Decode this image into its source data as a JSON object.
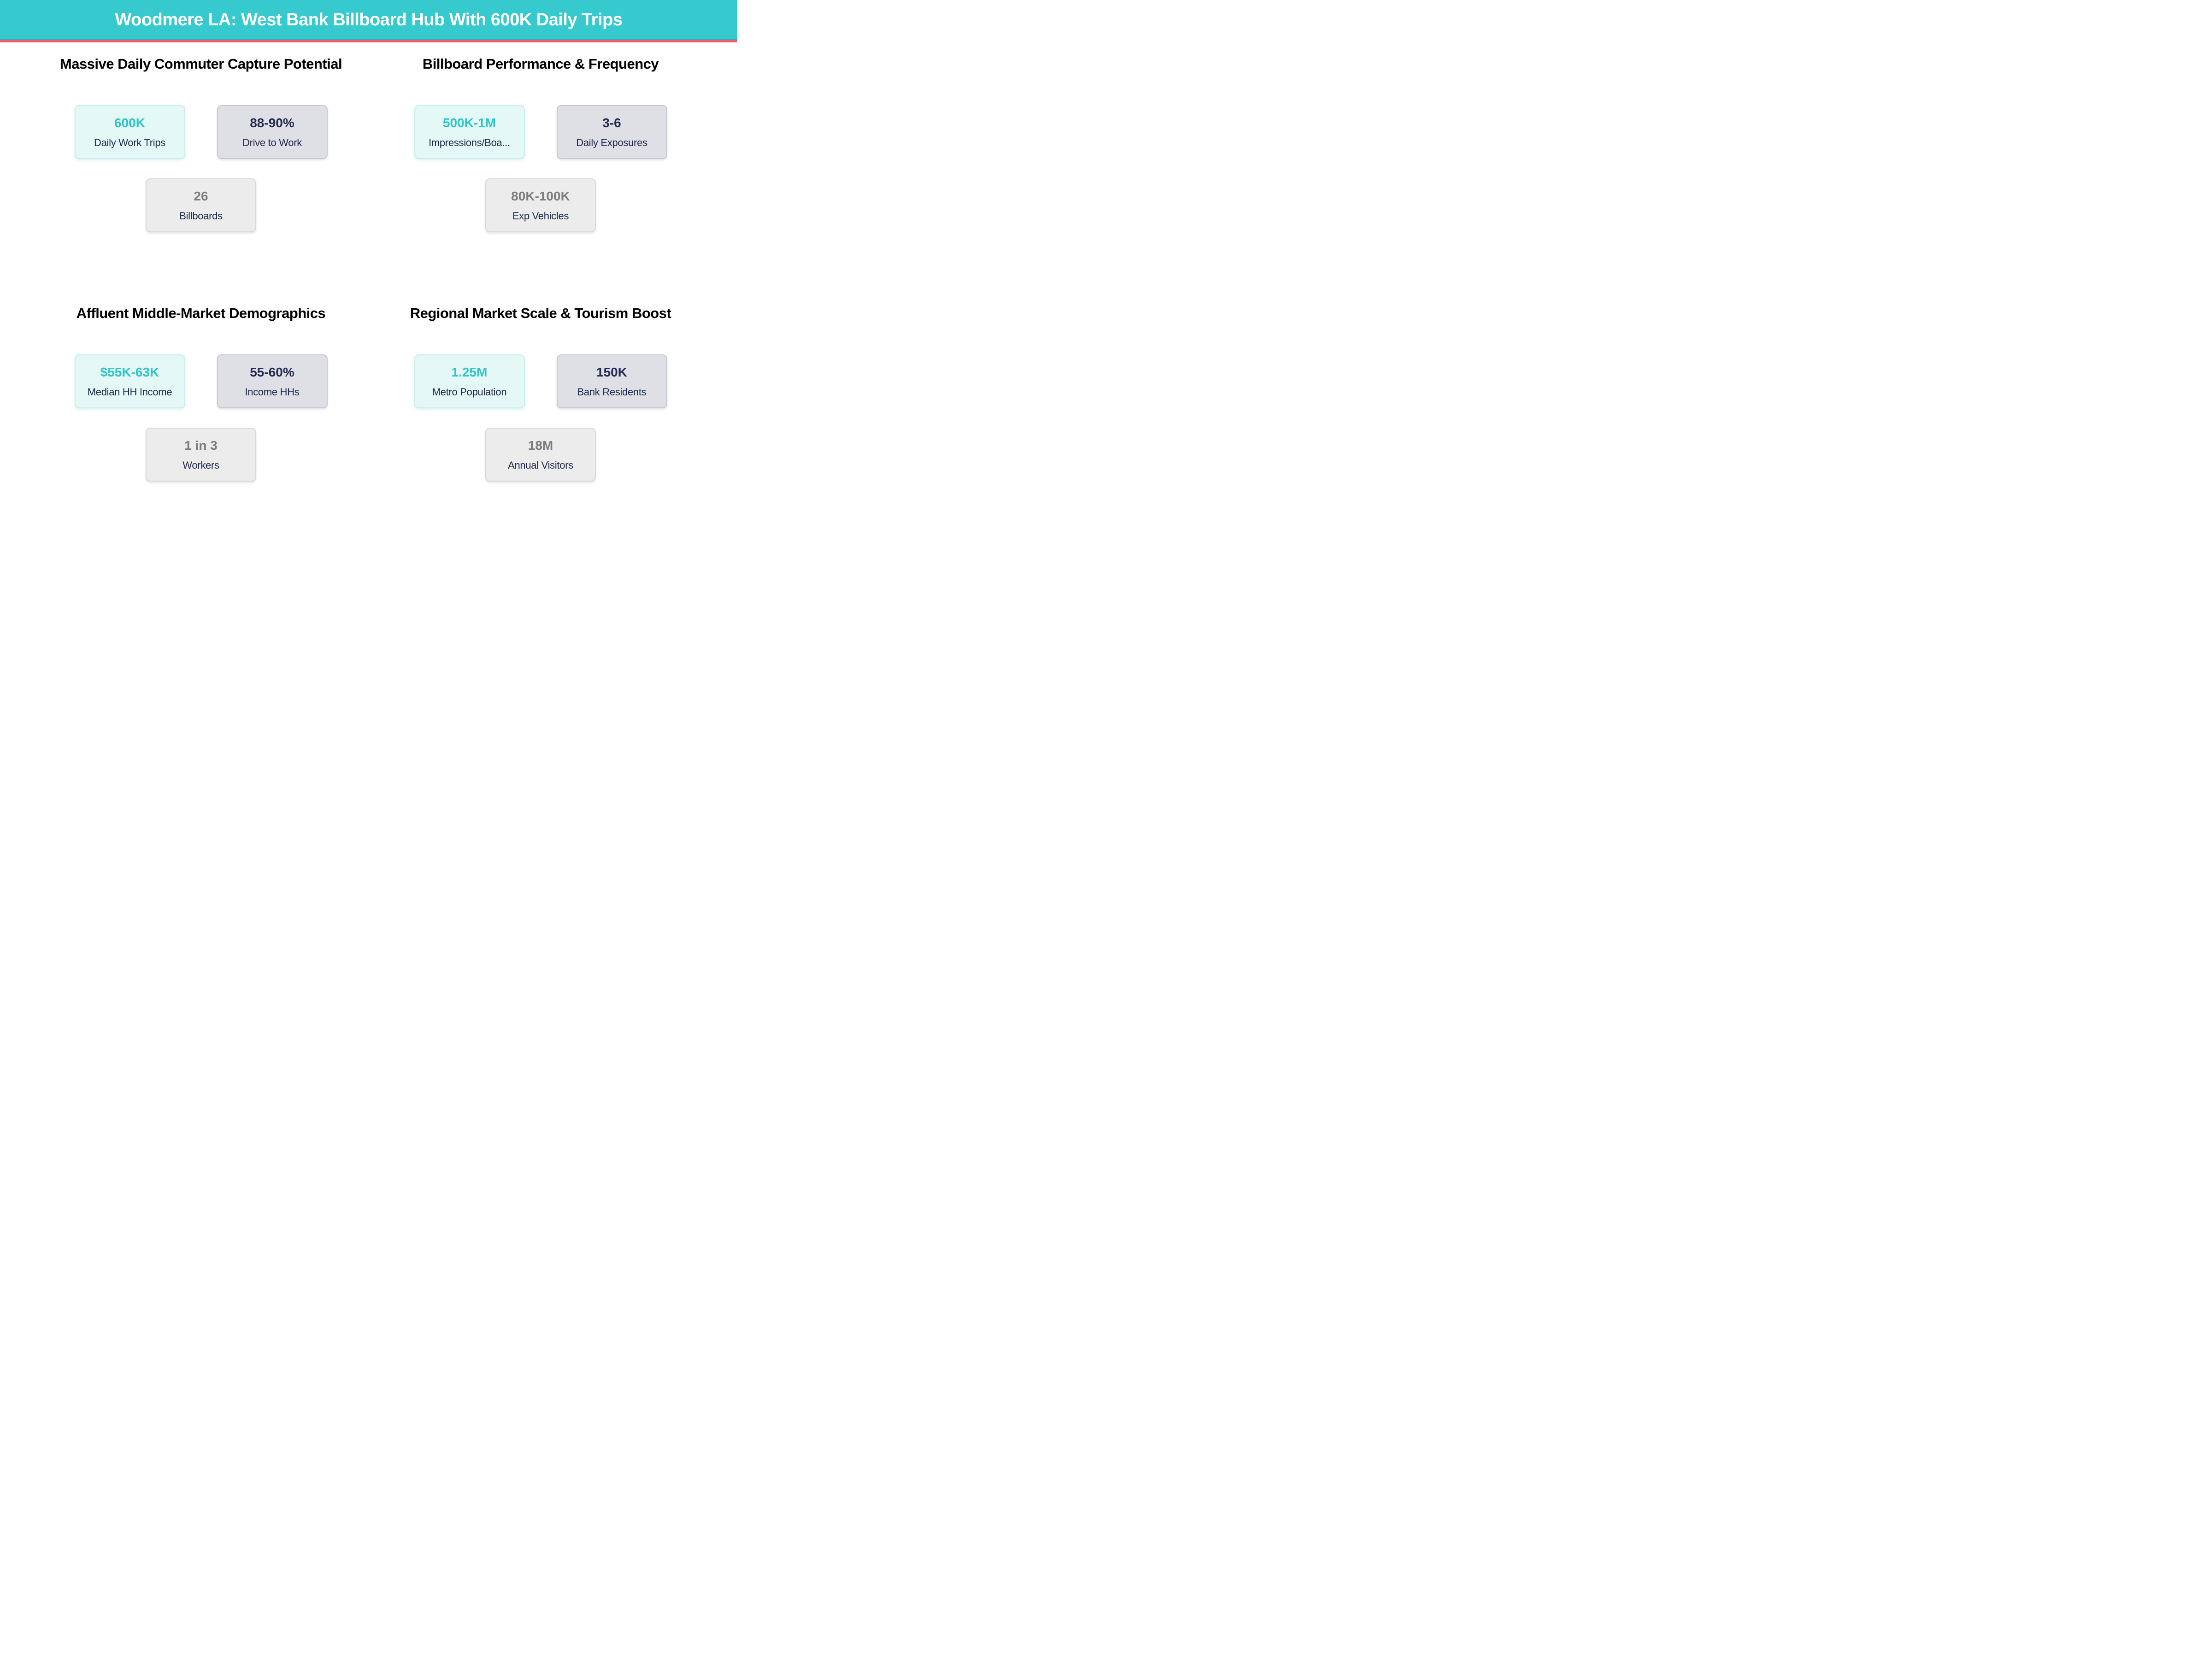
{
  "chart_data": {
    "type": "table",
    "title": "Woodmere LA: West Bank Billboard Hub With 600K Daily Trips",
    "layout": "2x2 panels, each with 2 stat cards on top row and 1 centered below",
    "panels": [
      {
        "title": "Massive Daily Commuter Capture Potential",
        "stats": [
          {
            "value": "600K",
            "label": "Daily Work Trips"
          },
          {
            "value": "88-90%",
            "label": "Drive to Work"
          },
          {
            "value": "26",
            "label": "Billboards"
          }
        ]
      },
      {
        "title": "Billboard Performance & Frequency",
        "stats": [
          {
            "value": "500K-1M",
            "label": "Impressions/Boa..."
          },
          {
            "value": "3-6",
            "label": "Daily Exposures"
          },
          {
            "value": "80K-100K",
            "label": "Exp Vehicles"
          }
        ]
      },
      {
        "title": "Affluent Middle-Market Demographics",
        "stats": [
          {
            "value": "$55K-63K",
            "label": "Median HH Income"
          },
          {
            "value": "55-60%",
            "label": "Income HHs"
          },
          {
            "value": "1 in 3",
            "label": "Workers"
          }
        ]
      },
      {
        "title": "Regional Market Scale & Tourism Boost",
        "stats": [
          {
            "value": "1.25M",
            "label": "Metro Population"
          },
          {
            "value": "150K",
            "label": "Bank Residents"
          },
          {
            "value": "18M",
            "label": "Annual Visitors"
          }
        ]
      }
    ]
  },
  "colors": {
    "header_background": "#36c9cd",
    "header_underline": "#ee5d72",
    "accent_teal_value": "#2cc5c8",
    "navy_value": "#222b52",
    "gray_value": "#7d7d7d",
    "label_navy": "#1e2849",
    "mint_card_bg": "#e4f8f5",
    "lavender_card_bg": "#dee0e6",
    "gray_card_bg": "#ececec"
  }
}
